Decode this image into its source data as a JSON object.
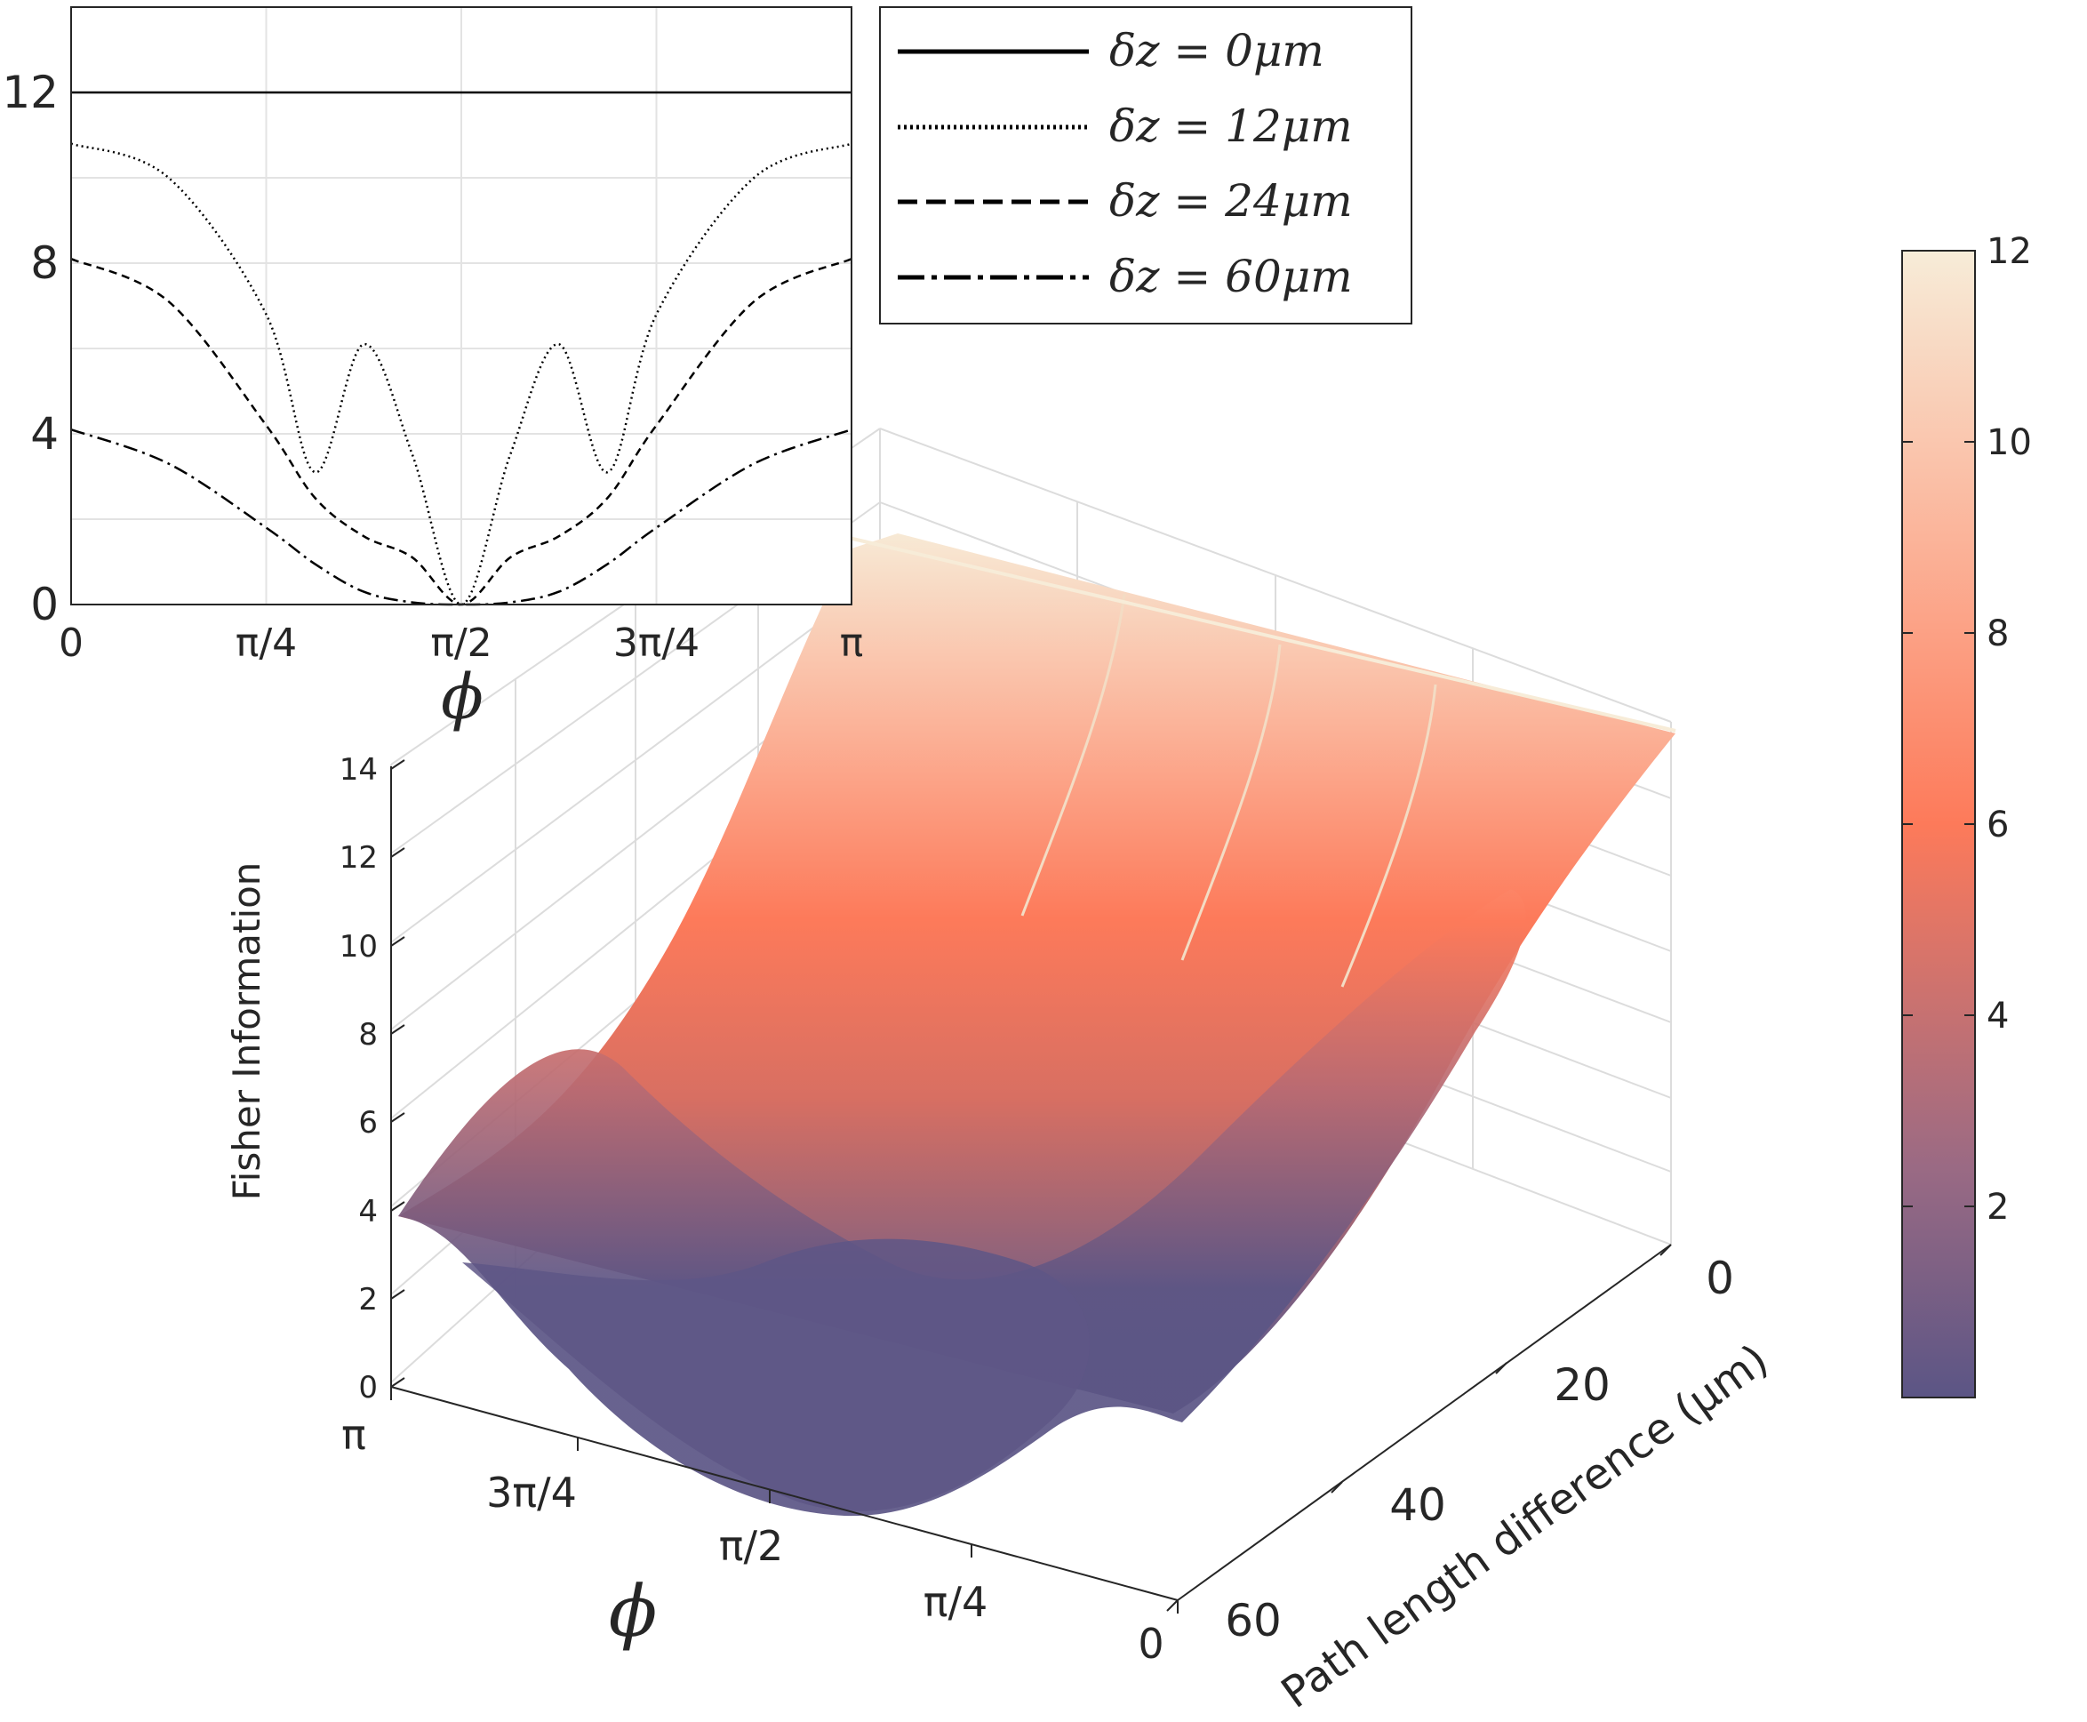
{
  "chart_data": [
    {
      "type": "line",
      "role": "inset",
      "xlabel": "ϕ",
      "xlim": [
        0,
        3.14159
      ],
      "ylim": [
        0,
        14
      ],
      "xticks": [
        0,
        0.7854,
        1.5708,
        2.3562,
        3.14159
      ],
      "xtick_labels": [
        "0",
        "π/4",
        "π/2",
        "3π/4",
        "π"
      ],
      "yticks": [
        0,
        4,
        8,
        12
      ],
      "ytick_labels": [
        "0",
        "4",
        "8",
        "12"
      ],
      "grid": true,
      "legend": {
        "position": "top-right",
        "entries": [
          "δz = 0μm",
          "δz = 12μm",
          "δz = 24μm",
          "δz = 60μm"
        ]
      },
      "x": [
        0,
        0.3927,
        0.7854,
        0.9817,
        1.1781,
        1.3744,
        1.5708,
        1.7671,
        1.9635,
        2.1598,
        2.3562,
        2.7489,
        3.14159
      ],
      "series": [
        {
          "name": "δz = 0μm",
          "style": "solid",
          "values": [
            12,
            12,
            12,
            12,
            12,
            12,
            12,
            12,
            12,
            12,
            12,
            12,
            12
          ]
        },
        {
          "name": "δz = 12μm",
          "style": "dotted",
          "values": [
            10.8,
            10,
            6.8,
            3.1,
            6.1,
            3.5,
            0,
            3.5,
            6.1,
            3.1,
            6.8,
            10,
            10.8
          ]
        },
        {
          "name": "δz = 24μm",
          "style": "dashed",
          "values": [
            8.1,
            7.1,
            4.2,
            2.5,
            1.6,
            1.1,
            0,
            1.1,
            1.6,
            2.5,
            4.2,
            7.1,
            8.1
          ]
        },
        {
          "name": "δz = 60μm",
          "style": "dashdot",
          "values": [
            4.1,
            3.3,
            1.8,
            0.95,
            0.3,
            0.05,
            0,
            0.05,
            0.3,
            0.95,
            1.8,
            3.3,
            4.1
          ]
        }
      ]
    },
    {
      "type": "surface",
      "role": "main",
      "zlabel": "Fisher Information",
      "xlabel": "ϕ",
      "ylabel": "Path length difference (μm)",
      "zlim": [
        0,
        14
      ],
      "zticks": [
        "0",
        "2",
        "4",
        "6",
        "8",
        "10",
        "12",
        "14"
      ],
      "phi_ticks": [
        "π",
        "3π/4",
        "π/2",
        "π/4",
        "0"
      ],
      "path_ticks": [
        "0",
        "20",
        "40",
        "60"
      ],
      "colorbar": {
        "ticks": [
          "2",
          "4",
          "6",
          "8",
          "10",
          "12"
        ],
        "range": [
          0,
          12
        ],
        "low_color": "#5b5585",
        "mid_color": "#fd7a5a",
        "high_color": "#f7ecd8"
      }
    }
  ]
}
